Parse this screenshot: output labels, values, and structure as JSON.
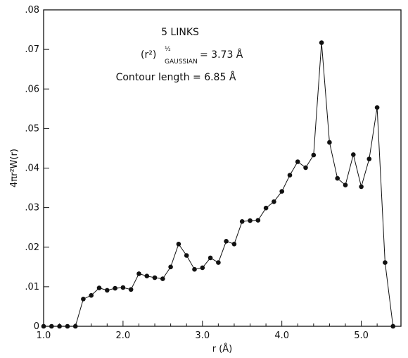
{
  "chart_data": {
    "type": "line",
    "title": "",
    "xlabel": "r (Å)",
    "ylabel": "4πr²W(r)",
    "xlim": [
      1.0,
      5.5
    ],
    "ylim": [
      0,
      0.08
    ],
    "x_ticks": [
      "1.0",
      "2.0",
      "3.0",
      "4.0",
      "5.0"
    ],
    "y_ticks": [
      "0",
      ".01",
      ".02",
      ".03",
      ".04",
      ".05",
      ".06",
      ".07",
      ".08"
    ],
    "grid": false,
    "annotations": {
      "title_line": "5 LINKS",
      "rms_prefix": "(r²)",
      "rms_exponent": "½",
      "rms_subscript": "GAUSSIAN",
      "rms_value": "= 3.73 Å",
      "contour": "Contour length = 6.85 Å"
    },
    "series": [
      {
        "x": [
          1.0,
          1.1,
          1.2,
          1.3,
          1.4,
          1.5,
          1.6,
          1.7,
          1.8,
          1.9,
          2.0,
          2.1,
          2.2,
          2.3,
          2.4,
          2.5,
          2.6,
          2.7,
          2.8,
          2.9,
          3.0,
          3.1,
          3.2,
          3.3,
          3.4,
          3.5,
          3.6,
          3.7,
          3.8,
          3.9,
          4.0,
          4.1,
          4.2,
          4.3,
          4.4,
          4.5,
          4.6,
          4.7,
          4.8,
          4.9,
          5.0,
          5.1,
          5.2,
          5.3,
          5.4
        ],
        "y": [
          0,
          0,
          0,
          0,
          0,
          0.0069,
          0.0078,
          0.0097,
          0.0091,
          0.0096,
          0.0098,
          0.0093,
          0.0133,
          0.0127,
          0.0123,
          0.012,
          0.015,
          0.0208,
          0.0179,
          0.0144,
          0.0148,
          0.0173,
          0.0161,
          0.0215,
          0.0208,
          0.0265,
          0.0267,
          0.0268,
          0.0299,
          0.0315,
          0.0341,
          0.0382,
          0.0416,
          0.0401,
          0.0433,
          0.0717,
          0.0465,
          0.0374,
          0.0357,
          0.0434,
          0.0353,
          0.0423,
          0.0553,
          0.0161,
          0
        ]
      }
    ]
  }
}
